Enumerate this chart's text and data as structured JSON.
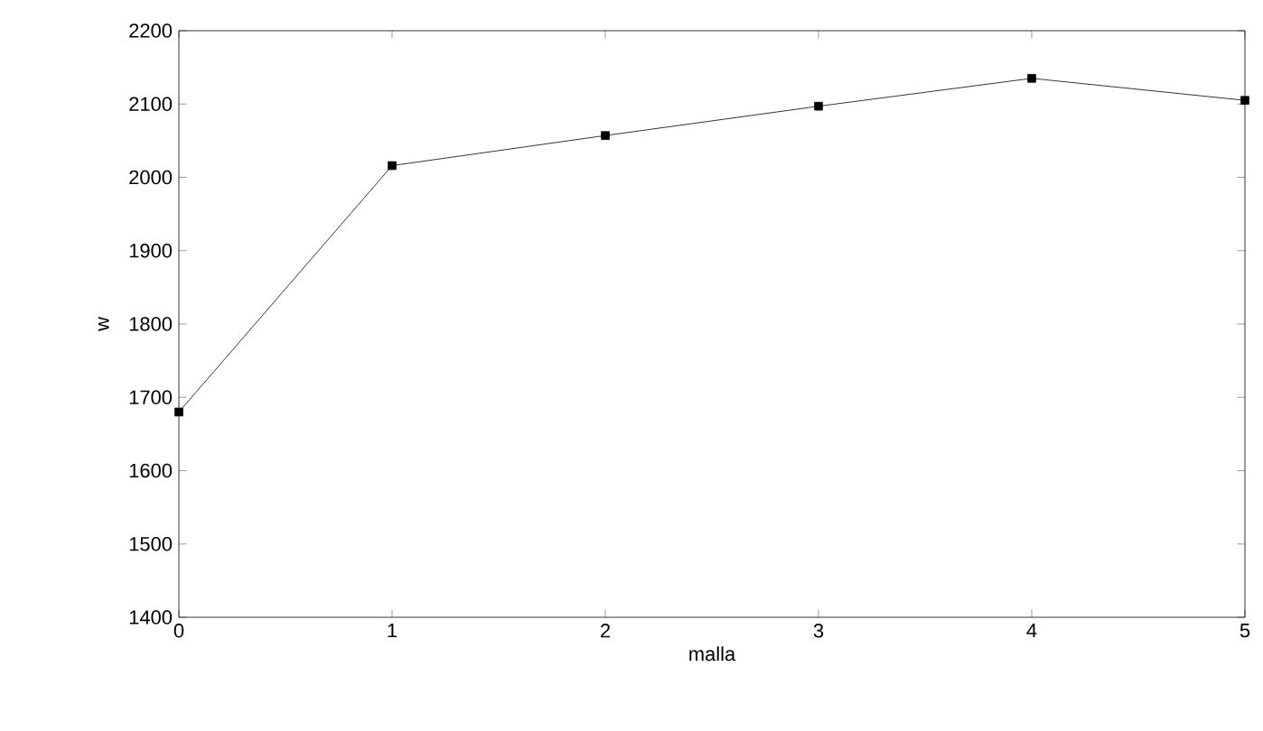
{
  "chart_data": {
    "type": "line",
    "xlabel": "malla",
    "ylabel": "w",
    "x": [
      0,
      1,
      2,
      3,
      4,
      5
    ],
    "series": [
      {
        "color": "#000000",
        "values": [
          1680,
          2016,
          2057,
          2097,
          2135,
          2105
        ]
      }
    ],
    "xlim": [
      0,
      5
    ],
    "xticks": [
      0,
      1,
      2,
      3,
      4,
      5
    ],
    "ylim": [
      1400,
      2200
    ],
    "yticks": [
      1400,
      1500,
      1600,
      1700,
      1800,
      1900,
      2000,
      2100,
      2200
    ],
    "marker": "square",
    "line_style": "solid",
    "grid": false
  }
}
